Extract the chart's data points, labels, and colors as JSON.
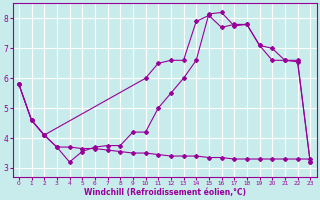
{
  "background_color": "#c8ecec",
  "line_color": "#990099",
  "grid_color": "#ffffff",
  "xlabel": "Windchill (Refroidissement éolien,°C)",
  "xlim": [
    -0.5,
    23.5
  ],
  "ylim": [
    2.7,
    8.5
  ],
  "yticks": [
    3,
    4,
    5,
    6,
    7,
    8
  ],
  "xticks": [
    0,
    1,
    2,
    3,
    4,
    5,
    6,
    7,
    8,
    9,
    10,
    11,
    12,
    13,
    14,
    15,
    16,
    17,
    18,
    19,
    20,
    21,
    22,
    23
  ],
  "s1_x": [
    0,
    1,
    2,
    3,
    4,
    5,
    6,
    7,
    8,
    9,
    10,
    11,
    12,
    13,
    14,
    15,
    16,
    17,
    18,
    19,
    20,
    21,
    22,
    23
  ],
  "s1_y": [
    5.8,
    4.6,
    4.1,
    3.7,
    3.7,
    3.65,
    3.65,
    3.6,
    3.55,
    3.5,
    3.5,
    3.45,
    3.4,
    3.4,
    3.4,
    3.35,
    3.35,
    3.3,
    3.3,
    3.3,
    3.3,
    3.3,
    3.3,
    3.3
  ],
  "s2_x": [
    0,
    1,
    2,
    3,
    4,
    5,
    6,
    7,
    8,
    9,
    10,
    11,
    12,
    13,
    14,
    15,
    16,
    17,
    18,
    19,
    20,
    21,
    22,
    23
  ],
  "s2_y": [
    5.8,
    4.6,
    4.1,
    3.7,
    3.2,
    3.55,
    3.7,
    3.75,
    3.75,
    4.2,
    4.2,
    5.0,
    5.5,
    6.0,
    6.6,
    8.15,
    8.2,
    7.75,
    7.8,
    7.1,
    6.6,
    6.6,
    6.6,
    3.2
  ],
  "s3_x": [
    0,
    1,
    2,
    10,
    11,
    12,
    13,
    14,
    15,
    16,
    17,
    18,
    19,
    20,
    21,
    22,
    23
  ],
  "s3_y": [
    5.8,
    4.6,
    4.1,
    6.0,
    6.5,
    6.6,
    6.6,
    7.9,
    8.1,
    7.7,
    7.8,
    7.8,
    7.1,
    7.0,
    6.6,
    6.55,
    3.2
  ]
}
